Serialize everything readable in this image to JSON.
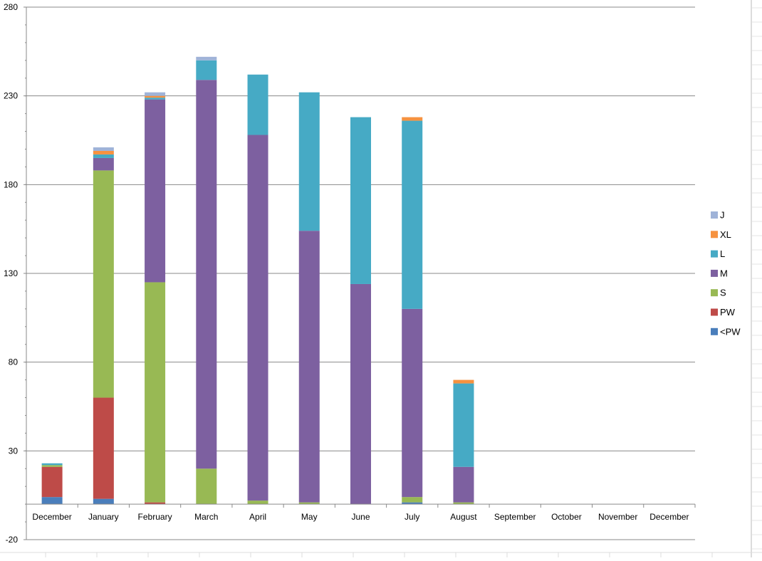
{
  "chart_data": {
    "type": "bar",
    "stacked": true,
    "title": "",
    "xlabel": "",
    "ylabel": "",
    "ylim": [
      -20,
      280
    ],
    "yticks": [
      -20,
      30,
      80,
      130,
      180,
      230,
      280
    ],
    "grid": true,
    "legend_position": "right",
    "categories": [
      "December",
      "January",
      "February",
      "March",
      "April",
      "May",
      "June",
      "July",
      "August",
      "September",
      "October",
      "November",
      "December"
    ],
    "series": [
      {
        "name": "<PW",
        "color": "#4a7ebb",
        "values": [
          4,
          3,
          0,
          0,
          0,
          0,
          0,
          1,
          0,
          0,
          0,
          0,
          0
        ]
      },
      {
        "name": "PW",
        "color": "#be4b48",
        "values": [
          17,
          57,
          1,
          0,
          0,
          0,
          0,
          0,
          0,
          0,
          0,
          0,
          0
        ]
      },
      {
        "name": "S",
        "color": "#98b954",
        "values": [
          1,
          128,
          124,
          20,
          2,
          1,
          0,
          3,
          1,
          0,
          0,
          0,
          0
        ]
      },
      {
        "name": "M",
        "color": "#7d60a0",
        "values": [
          0,
          7,
          103,
          219,
          206,
          153,
          124,
          106,
          20,
          0,
          0,
          0,
          0
        ]
      },
      {
        "name": "L",
        "color": "#46aac5",
        "values": [
          1,
          2,
          1,
          11,
          34,
          78,
          94,
          106,
          47,
          0,
          0,
          0,
          0
        ]
      },
      {
        "name": "XL",
        "color": "#f69240",
        "values": [
          0,
          2,
          1,
          0,
          0,
          0,
          0,
          2,
          2,
          0,
          0,
          0,
          0
        ]
      },
      {
        "name": "J",
        "color": "#9fb3d8",
        "values": [
          0,
          2,
          2,
          2,
          0,
          0,
          0,
          0,
          0,
          0,
          0,
          0,
          0
        ]
      }
    ]
  }
}
